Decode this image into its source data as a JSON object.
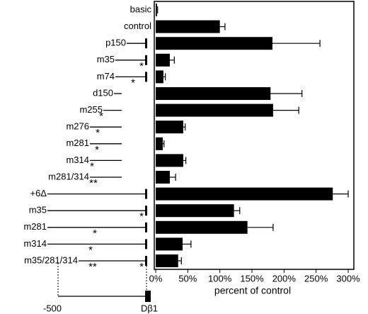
{
  "chart_data": {
    "type": "bar",
    "orientation": "horizontal",
    "categories": [
      "basic",
      "control",
      "p150",
      "m35",
      "m74",
      "d150",
      "m255",
      "m276",
      "m281",
      "m314",
      "m281/314",
      "+6Δ",
      "m35",
      "m281",
      "m314",
      "m35/281/314"
    ],
    "values": [
      2,
      100,
      182,
      22,
      12,
      179,
      183,
      43,
      11,
      43,
      22,
      276,
      122,
      143,
      42,
      35
    ],
    "errors": [
      1,
      8,
      74,
      7,
      3,
      49,
      40,
      3,
      2,
      4,
      9,
      24,
      9,
      40,
      13,
      5
    ],
    "color": "#000000",
    "xlim": [
      0,
      300
    ],
    "xticks": [
      {
        "value": 0,
        "label": "0%"
      },
      {
        "value": 50,
        "label": "50%"
      },
      {
        "value": 100,
        "label": "100%"
      },
      {
        "value": 150,
        "label": "150%"
      },
      {
        "value": 200,
        "label": "200%"
      },
      {
        "value": 250,
        "label": "250%"
      },
      {
        "value": 300,
        "label": "300%"
      }
    ],
    "xlabel": "percent of control",
    "mutation_marks": [
      null,
      null,
      null,
      [
        "*"
      ],
      [
        "*"
      ],
      null,
      [
        "*"
      ],
      [
        "*"
      ],
      [
        "*"
      ],
      [
        "*"
      ],
      [
        "**"
      ],
      null,
      [
        "*"
      ],
      [
        "*"
      ],
      [
        "*"
      ],
      [
        "**",
        "*"
      ]
    ],
    "map_labels": [
      "-500",
      "Dβ1"
    ]
  }
}
